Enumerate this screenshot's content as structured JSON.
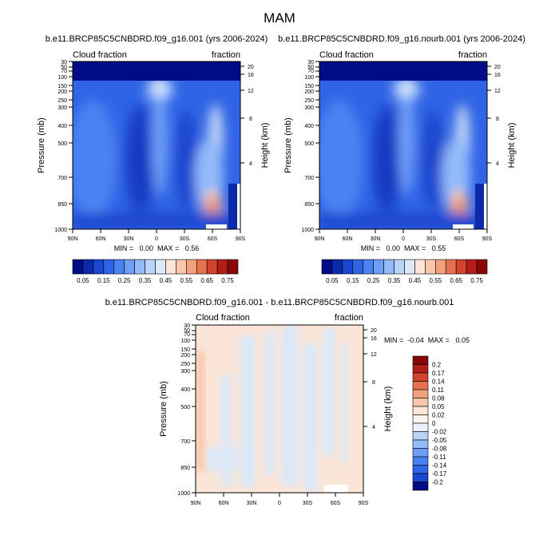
{
  "figure": {
    "title": "MAM"
  },
  "chart_data": [
    {
      "type": "heatmap",
      "name": "panel-1",
      "title": "b.e11.BRCP85C5CNBDRD.f09_g16.001 (yrs 2006-2024)",
      "left_label": "Cloud fraction",
      "right_label": "fraction",
      "xlabel": "",
      "ylabel": "Pressure (mb)",
      "y2label": "Height (km)",
      "x_ticks": [
        "90N",
        "60N",
        "30N",
        "0",
        "30S",
        "60S",
        "90S"
      ],
      "x_range": [
        90,
        -90
      ],
      "y_ticks": [
        30,
        50,
        70,
        100,
        150,
        200,
        250,
        300,
        400,
        500,
        700,
        850,
        1000
      ],
      "y_range": [
        1000,
        30
      ],
      "height_ticks": [
        20,
        16,
        12,
        8,
        4
      ],
      "min_max_text": "MIN =   0.00  MAX =   0.56",
      "colorbar": {
        "orientation": "horizontal",
        "labels": [
          "0.05",
          "0.15",
          "0.25",
          "0.35",
          "0.45",
          "0.55",
          "0.65",
          "0.75"
        ],
        "colors": [
          "#000b85",
          "#0a2aaa",
          "#1a47cf",
          "#3064e6",
          "#4b82f3",
          "#6e9ef8",
          "#93baf9",
          "#bbd3f6",
          "#dde8f6",
          "#fbe5d7",
          "#f8c6ab",
          "#f2a07b",
          "#e6724d",
          "#d1432c",
          "#b41d17",
          "#8a0707"
        ]
      }
    },
    {
      "type": "heatmap",
      "name": "panel-2",
      "title": "b.e11.BRCP85C5CNBDRD.f09_g16.nourb.001 (yrs 2006-2024)",
      "left_label": "Cloud fraction",
      "right_label": "fraction",
      "xlabel": "",
      "ylabel": "Pressure (mb)",
      "y2label": "Height (km)",
      "x_ticks": [
        "90N",
        "60N",
        "30N",
        "0",
        "30S",
        "60S",
        "90S"
      ],
      "x_range": [
        90,
        -90
      ],
      "y_ticks": [
        30,
        50,
        70,
        100,
        150,
        200,
        250,
        300,
        400,
        500,
        700,
        850,
        1000
      ],
      "y_range": [
        1000,
        30
      ],
      "height_ticks": [
        20,
        16,
        12,
        8,
        4
      ],
      "min_max_text": "MIN =   0.00  MAX =   0.55",
      "colorbar": {
        "orientation": "horizontal",
        "labels": [
          "0.05",
          "0.15",
          "0.25",
          "0.35",
          "0.45",
          "0.55",
          "0.65",
          "0.75"
        ],
        "colors": [
          "#000b85",
          "#0a2aaa",
          "#1a47cf",
          "#3064e6",
          "#4b82f3",
          "#6e9ef8",
          "#93baf9",
          "#bbd3f6",
          "#dde8f6",
          "#fbe5d7",
          "#f8c6ab",
          "#f2a07b",
          "#e6724d",
          "#d1432c",
          "#b41d17",
          "#8a0707"
        ]
      }
    },
    {
      "type": "heatmap",
      "name": "panel-diff",
      "title": "b.e11.BRCP85C5CNBDRD.f09_g16.001 - b.e11.BRCP85C5CNBDRD.f09_g16.nourb.001",
      "left_label": "Cloud fraction",
      "right_label": "fraction",
      "xlabel": "",
      "ylabel": "Pressure (mb)",
      "y2label": "Height (km)",
      "x_ticks": [
        "90N",
        "60N",
        "30N",
        "0",
        "30S",
        "60S",
        "90S"
      ],
      "x_range": [
        90,
        -90
      ],
      "y_ticks": [
        30,
        50,
        70,
        100,
        150,
        200,
        250,
        300,
        400,
        500,
        700,
        850,
        1000
      ],
      "y_range": [
        1000,
        30
      ],
      "height_ticks": [
        20,
        16,
        12,
        8,
        4
      ],
      "min_max_text": "MIN =  -0.04  MAX =   0.05",
      "colorbar": {
        "orientation": "vertical",
        "labels": [
          "0.2",
          "0.17",
          "0.14",
          "0.11",
          "0.08",
          "0.05",
          "0.02",
          "0",
          "-0.02",
          "-0.05",
          "-0.08",
          "-0.11",
          "-0.14",
          "-0.17",
          "-0.2"
        ],
        "colors": [
          "#8a0707",
          "#b41d17",
          "#d1432c",
          "#e6724d",
          "#f2a07b",
          "#f8c6ab",
          "#fbe5d7",
          "#fbf2ea",
          "#eaf1fb",
          "#bbd3f6",
          "#93baf9",
          "#6e9ef8",
          "#4b82f3",
          "#3064e6",
          "#1a47cf",
          "#000b85"
        ]
      }
    }
  ]
}
